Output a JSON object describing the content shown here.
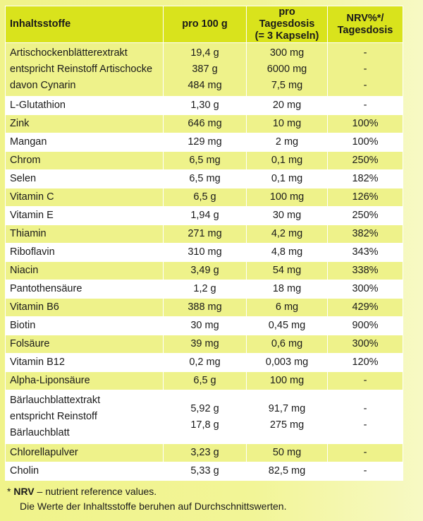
{
  "header": {
    "col1": "Inhaltsstoffe",
    "col2": "pro 100 g",
    "col3_line1": "pro Tagesdosis",
    "col3_line2": "(= 3 Kapseln)",
    "col4_line1": "NRV%*/",
    "col4_line2": "Tagesdosis"
  },
  "rows": [
    {
      "shade": true,
      "lines": [
        {
          "name": "Artischockenblätterextrakt",
          "per100": "19,4 g",
          "dose": "300 mg",
          "nrv": "-"
        },
        {
          "name": "entspricht Reinstoff Artischocke",
          "per100": "387 g",
          "dose": "6000 mg",
          "nrv": "-"
        },
        {
          "name": "davon Cynarin",
          "per100": "484 mg",
          "dose": "7,5 mg",
          "nrv": "-"
        }
      ]
    },
    {
      "shade": false,
      "lines": [
        {
          "name": "L-Glutathion",
          "per100": "1,30 g",
          "dose": "20 mg",
          "nrv": "-"
        }
      ]
    },
    {
      "shade": true,
      "lines": [
        {
          "name": "Zink",
          "per100": "646 mg",
          "dose": "10 mg",
          "nrv": "100%"
        }
      ]
    },
    {
      "shade": false,
      "lines": [
        {
          "name": "Mangan",
          "per100": "129 mg",
          "dose": "2 mg",
          "nrv": "100%"
        }
      ]
    },
    {
      "shade": true,
      "lines": [
        {
          "name": "Chrom",
          "per100": "6,5 mg",
          "dose": "0,1 mg",
          "nrv": "250%"
        }
      ]
    },
    {
      "shade": false,
      "lines": [
        {
          "name": "Selen",
          "per100": "6,5 mg",
          "dose": "0,1 mg",
          "nrv": "182%"
        }
      ]
    },
    {
      "shade": true,
      "lines": [
        {
          "name": "Vitamin C",
          "per100": "6,5 g",
          "dose": "100 mg",
          "nrv": "126%"
        }
      ]
    },
    {
      "shade": false,
      "lines": [
        {
          "name": "Vitamin E",
          "per100": "1,94 g",
          "dose": "30 mg",
          "nrv": "250%"
        }
      ]
    },
    {
      "shade": true,
      "lines": [
        {
          "name": "Thiamin",
          "per100": "271 mg",
          "dose": "4,2 mg",
          "nrv": "382%"
        }
      ]
    },
    {
      "shade": false,
      "lines": [
        {
          "name": "Riboflavin",
          "per100": "310 mg",
          "dose": "4,8 mg",
          "nrv": "343%"
        }
      ]
    },
    {
      "shade": true,
      "lines": [
        {
          "name": "Niacin",
          "per100": "3,49 g",
          "dose": "54 mg",
          "nrv": "338%"
        }
      ]
    },
    {
      "shade": false,
      "lines": [
        {
          "name": "Pantothensäure",
          "per100": "1,2 g",
          "dose": "18 mg",
          "nrv": "300%"
        }
      ]
    },
    {
      "shade": true,
      "lines": [
        {
          "name": "Vitamin B6",
          "per100": "388 mg",
          "dose": "6 mg",
          "nrv": "429%"
        }
      ]
    },
    {
      "shade": false,
      "lines": [
        {
          "name": "Biotin",
          "per100": "30 mg",
          "dose": "0,45 mg",
          "nrv": "900%"
        }
      ]
    },
    {
      "shade": true,
      "lines": [
        {
          "name": "Folsäure",
          "per100": "39 mg",
          "dose": "0,6 mg",
          "nrv": "300%"
        }
      ]
    },
    {
      "shade": false,
      "lines": [
        {
          "name": "Vitamin B12",
          "per100": "0,2 mg",
          "dose": "0,003 mg",
          "nrv": "120%"
        }
      ]
    },
    {
      "shade": true,
      "lines": [
        {
          "name": "Alpha-Liponsäure",
          "per100": "6,5 g",
          "dose": "100 mg",
          "nrv": "-"
        }
      ]
    },
    {
      "shade": false,
      "lines": [
        {
          "name": "Bärlauchblattextrakt",
          "per100": "5,92 g",
          "dose": "91,7 mg",
          "nrv": "-"
        },
        {
          "name": "entspricht Reinstoff Bärlauchblatt",
          "per100": "17,8 g",
          "dose": "275 mg",
          "nrv": "-"
        }
      ]
    },
    {
      "shade": true,
      "lines": [
        {
          "name": "Chlorellapulver",
          "per100": "3,23 g",
          "dose": "50 mg",
          "nrv": "-"
        }
      ]
    },
    {
      "shade": false,
      "lines": [
        {
          "name": "Cholin",
          "per100": "5,33 g",
          "dose": "82,5 mg",
          "nrv": "-"
        }
      ]
    }
  ],
  "footnote": {
    "prefix": "* ",
    "bold": "NRV",
    "rest": " – nutrient reference values.",
    "line2": "Die Werte der Inhaltsstoffe beruhen auf Durchschnittswerten."
  },
  "colors": {
    "header_bg": "#d9e31c",
    "shade_bg": "#eef28a",
    "plain_bg": "#ffffff",
    "panel_bg": "#f2f597"
  }
}
